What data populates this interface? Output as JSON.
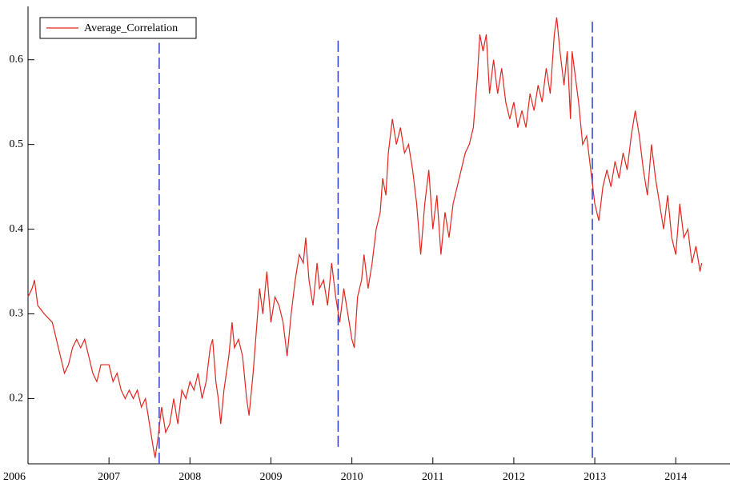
{
  "chart_data": {
    "type": "line",
    "x": [
      2006.0,
      2006.05,
      2006.08,
      2006.12,
      2006.2,
      2006.3,
      2006.35,
      2006.4,
      2006.45,
      2006.5,
      2006.55,
      2006.6,
      2006.65,
      2006.7,
      2006.75,
      2006.8,
      2006.85,
      2006.9,
      2007.0,
      2007.05,
      2007.1,
      2007.15,
      2007.2,
      2007.25,
      2007.3,
      2007.35,
      2007.4,
      2007.45,
      2007.5,
      2007.55,
      2007.57,
      2007.6,
      2007.65,
      2007.7,
      2007.75,
      2007.8,
      2007.85,
      2007.9,
      2007.95,
      2008.0,
      2008.05,
      2008.1,
      2008.15,
      2008.2,
      2008.25,
      2008.28,
      2008.32,
      2008.35,
      2008.38,
      2008.42,
      2008.48,
      2008.52,
      2008.55,
      2008.6,
      2008.65,
      2008.7,
      2008.73,
      2008.78,
      2008.82,
      2008.86,
      2008.9,
      2008.95,
      2009.0,
      2009.05,
      2009.1,
      2009.15,
      2009.2,
      2009.25,
      2009.3,
      2009.35,
      2009.4,
      2009.43,
      2009.47,
      2009.52,
      2009.57,
      2009.6,
      2009.65,
      2009.7,
      2009.75,
      2009.8,
      2009.85,
      2009.9,
      2009.95,
      2010.0,
      2010.03,
      2010.07,
      2010.12,
      2010.15,
      2010.2,
      2010.25,
      2010.3,
      2010.35,
      2010.38,
      2010.42,
      2010.45,
      2010.5,
      2010.55,
      2010.6,
      2010.65,
      2010.7,
      2010.75,
      2010.8,
      2010.85,
      2010.9,
      2010.95,
      2011.0,
      2011.05,
      2011.1,
      2011.15,
      2011.2,
      2011.25,
      2011.3,
      2011.35,
      2011.4,
      2011.45,
      2011.5,
      2011.55,
      2011.58,
      2011.62,
      2011.66,
      2011.7,
      2011.75,
      2011.8,
      2011.85,
      2011.9,
      2011.95,
      2012.0,
      2012.05,
      2012.1,
      2012.15,
      2012.2,
      2012.25,
      2012.3,
      2012.35,
      2012.4,
      2012.45,
      2012.5,
      2012.53,
      2012.57,
      2012.62,
      2012.66,
      2012.7,
      2012.72,
      2012.76,
      2012.8,
      2012.85,
      2012.9,
      2012.95,
      2013.0,
      2013.05,
      2013.1,
      2013.15,
      2013.2,
      2013.25,
      2013.3,
      2013.35,
      2013.4,
      2013.45,
      2013.5,
      2013.55,
      2013.6,
      2013.65,
      2013.7,
      2013.75,
      2013.8,
      2013.85,
      2013.9,
      2013.95,
      2014.0,
      2014.05,
      2014.1,
      2014.15,
      2014.2,
      2014.25,
      2014.3,
      2014.32
    ],
    "series": [
      {
        "name": "Average_Correlation",
        "color": "#e0261f",
        "values": [
          0.32,
          0.33,
          0.34,
          0.31,
          0.3,
          0.29,
          0.27,
          0.25,
          0.23,
          0.24,
          0.26,
          0.27,
          0.26,
          0.27,
          0.25,
          0.23,
          0.22,
          0.24,
          0.24,
          0.22,
          0.23,
          0.21,
          0.2,
          0.21,
          0.2,
          0.21,
          0.19,
          0.2,
          0.17,
          0.14,
          0.13,
          0.15,
          0.19,
          0.16,
          0.17,
          0.2,
          0.17,
          0.21,
          0.2,
          0.22,
          0.21,
          0.23,
          0.2,
          0.22,
          0.26,
          0.27,
          0.22,
          0.2,
          0.17,
          0.21,
          0.25,
          0.29,
          0.26,
          0.27,
          0.25,
          0.2,
          0.18,
          0.23,
          0.28,
          0.33,
          0.3,
          0.35,
          0.29,
          0.32,
          0.31,
          0.29,
          0.25,
          0.3,
          0.34,
          0.37,
          0.36,
          0.39,
          0.34,
          0.31,
          0.36,
          0.33,
          0.34,
          0.31,
          0.36,
          0.32,
          0.29,
          0.33,
          0.3,
          0.27,
          0.26,
          0.32,
          0.34,
          0.37,
          0.33,
          0.36,
          0.4,
          0.42,
          0.46,
          0.44,
          0.49,
          0.53,
          0.5,
          0.52,
          0.49,
          0.5,
          0.47,
          0.43,
          0.37,
          0.43,
          0.47,
          0.4,
          0.44,
          0.37,
          0.42,
          0.39,
          0.43,
          0.45,
          0.47,
          0.49,
          0.5,
          0.52,
          0.58,
          0.63,
          0.61,
          0.63,
          0.56,
          0.6,
          0.56,
          0.59,
          0.55,
          0.53,
          0.55,
          0.52,
          0.54,
          0.52,
          0.56,
          0.54,
          0.57,
          0.55,
          0.59,
          0.56,
          0.63,
          0.65,
          0.61,
          0.57,
          0.61,
          0.53,
          0.61,
          0.58,
          0.55,
          0.5,
          0.51,
          0.47,
          0.43,
          0.41,
          0.45,
          0.47,
          0.45,
          0.48,
          0.46,
          0.49,
          0.47,
          0.51,
          0.54,
          0.51,
          0.47,
          0.44,
          0.5,
          0.46,
          0.43,
          0.4,
          0.44,
          0.39,
          0.37,
          0.43,
          0.39,
          0.4,
          0.36,
          0.38,
          0.35,
          0.36
        ]
      }
    ],
    "vlines": {
      "color": "#2c3fc9",
      "x": [
        2007.62,
        2009.83,
        2012.97
      ],
      "y0": [
        0.123,
        0.143,
        0.13
      ],
      "y1": [
        0.62,
        0.624,
        0.645
      ]
    },
    "xlim": [
      2006,
      2014.67
    ],
    "ylim": [
      0.123,
      0.663
    ],
    "xticks": [
      2006,
      2007,
      2008,
      2009,
      2010,
      2011,
      2012,
      2013,
      2014
    ],
    "yticks": [
      0.2,
      0.3,
      0.4,
      0.5,
      0.6
    ],
    "legend": "upper left"
  }
}
